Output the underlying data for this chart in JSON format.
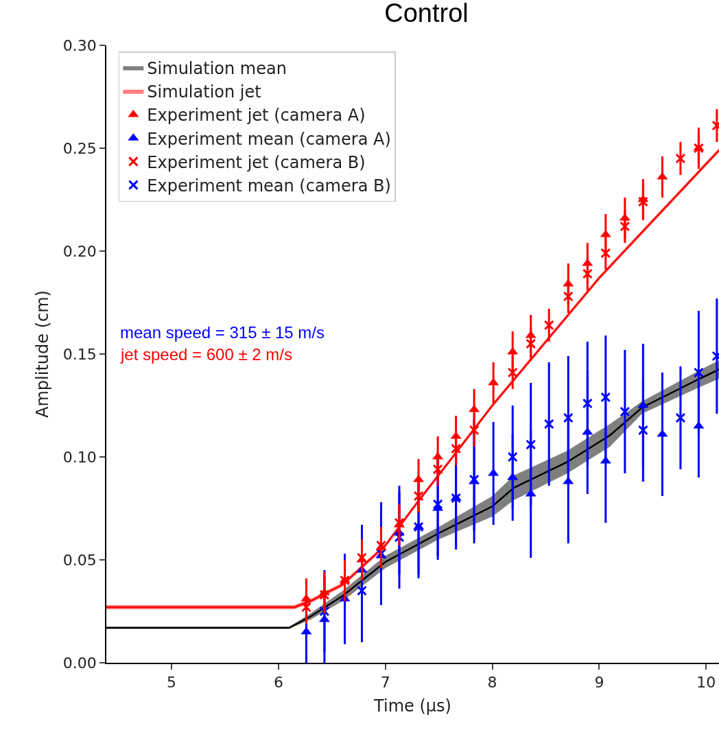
{
  "chart_data": {
    "type": "scatter",
    "title": "Control",
    "xlabel": "Time (µs)",
    "ylabel": "Amplitude (cm)",
    "xlim": [
      4.39,
      10.12
    ],
    "xticks": [
      5,
      6,
      7,
      8,
      9,
      10
    ],
    "ylim": [
      0,
      0.3
    ],
    "yticks": [
      {
        "value": 0,
        "label": "0.00"
      },
      {
        "value": 0.05,
        "label": "0.05"
      },
      {
        "value": 0.1,
        "label": "0.10"
      },
      {
        "value": 0.15,
        "label": "0.15"
      },
      {
        "value": 0.2,
        "label": "0.20"
      },
      {
        "value": 0.25,
        "label": "0.25"
      },
      {
        "value": 0.3,
        "label": "0.30"
      }
    ],
    "grid": false,
    "legend": "top left",
    "annotations": [
      "mean speed = 315 ± 15 m/s",
      "jet speed = 600 ± 2 m/s"
    ],
    "x": [
      6.26,
      6.43,
      6.62,
      6.78,
      6.96,
      7.13,
      7.31,
      7.49,
      7.66,
      7.83,
      8.01,
      8.19,
      8.36,
      8.53,
      8.71,
      8.89,
      9.06,
      9.24,
      9.41,
      9.59,
      9.76,
      9.93,
      10.1
    ],
    "series": [
      {
        "name": "Simulation mean",
        "type": "line",
        "color": "#000000",
        "x": [
          4.39,
          6.1,
          6.3,
          6.6,
          7.0,
          7.5,
          8.0,
          8.2,
          8.7,
          9.1,
          9.4,
          9.9,
          10.12
        ],
        "values": [
          0.017,
          0.017,
          0.0225,
          0.0325,
          0.049,
          0.063,
          0.076,
          0.085,
          0.0975,
          0.1105,
          0.124,
          0.137,
          0.1425
        ],
        "lower": [
          0.0165,
          0.0165,
          0.021,
          0.03,
          0.046,
          0.06,
          0.071,
          0.079,
          0.092,
          0.105,
          0.121,
          0.133,
          0.138
        ],
        "upper": [
          0.0175,
          0.0175,
          0.024,
          0.035,
          0.052,
          0.066,
          0.081,
          0.091,
          0.103,
          0.116,
          0.127,
          0.141,
          0.147
        ]
      },
      {
        "name": "Simulation jet",
        "type": "line",
        "color": "#ff0000",
        "x": [
          4.39,
          6.15,
          6.3,
          6.6,
          7.0,
          7.3,
          7.6,
          8.0,
          9.0,
          10.12
        ],
        "values": [
          0.027,
          0.027,
          0.03,
          0.038,
          0.057,
          0.078,
          0.098,
          0.125,
          0.187,
          0.249
        ],
        "lower": [
          0.026,
          0.026,
          0.029,
          0.037,
          0.056,
          0.077,
          0.097,
          0.124,
          0.186,
          0.248
        ],
        "upper": [
          0.028,
          0.028,
          0.031,
          0.039,
          0.058,
          0.079,
          0.099,
          0.126,
          0.188,
          0.25
        ]
      },
      {
        "name": "Experiment jet (camera A)",
        "marker": "triangle",
        "color": "#ff0000",
        "values": [
          0.031,
          0.034,
          0.04,
          0.05,
          0.056,
          0.067,
          0.089,
          0.1,
          0.11,
          0.123,
          0.136,
          0.151,
          0.159,
          null,
          0.184,
          0.194,
          0.208,
          0.216,
          0.225,
          0.236,
          null,
          0.25,
          null
        ],
        "errors": [
          0.01,
          0.01,
          0.01,
          0.01,
          0.01,
          0.01,
          0.01,
          0.01,
          0.01,
          0.01,
          0.01,
          0.01,
          0.01,
          null,
          0.01,
          0.01,
          0.01,
          0.01,
          0.01,
          0.01,
          null,
          0.01,
          null
        ]
      },
      {
        "name": "Experiment mean (camera A)",
        "marker": "triangle",
        "color": "#0000ff",
        "values": [
          0.015,
          0.021,
          0.031,
          0.045,
          0.052,
          0.063,
          0.066,
          0.075,
          0.08,
          0.088,
          0.092,
          0.09,
          0.082,
          null,
          0.088,
          0.112,
          0.098,
          null,
          0.125,
          0.111,
          null,
          0.115,
          null
        ],
        "errors": [
          0.015,
          0.021,
          0.022,
          0.022,
          0.02,
          0.02,
          0.023,
          0.025,
          0.023,
          0.03,
          0.025,
          0.021,
          0.031,
          null,
          0.03,
          0.03,
          0.03,
          null,
          0.03,
          0.03,
          null,
          0.025,
          null
        ]
      },
      {
        "name": "Experiment jet (camera B)",
        "marker": "cross",
        "color": "#ff0000",
        "values": [
          0.027,
          0.033,
          0.04,
          0.051,
          0.057,
          0.068,
          0.081,
          0.094,
          0.104,
          0.113,
          null,
          0.141,
          0.155,
          0.164,
          0.178,
          0.189,
          0.199,
          0.212,
          0.224,
          null,
          0.245,
          0.25,
          0.261
        ],
        "errors": [
          0.008,
          0.008,
          0.008,
          0.008,
          0.008,
          0.008,
          0.008,
          0.008,
          0.008,
          0.008,
          null,
          0.008,
          0.008,
          0.008,
          0.008,
          0.008,
          0.008,
          0.008,
          0.008,
          null,
          0.008,
          0.008,
          0.008
        ]
      },
      {
        "name": "Experiment mean (camera B)",
        "marker": "cross",
        "color": "#0000ff",
        "values": [
          null,
          0.025,
          null,
          0.035,
          0.053,
          0.061,
          0.066,
          0.077,
          0.08,
          0.089,
          null,
          0.1,
          0.106,
          0.116,
          0.119,
          0.126,
          0.129,
          0.122,
          0.113,
          null,
          0.119,
          0.141,
          0.149
        ],
        "errors": [
          null,
          0.02,
          null,
          0.025,
          0.025,
          0.025,
          0.025,
          0.025,
          0.025,
          0.025,
          null,
          0.025,
          0.03,
          0.03,
          0.03,
          0.03,
          0.03,
          0.03,
          0.025,
          null,
          0.025,
          0.03,
          0.028
        ]
      }
    ]
  }
}
